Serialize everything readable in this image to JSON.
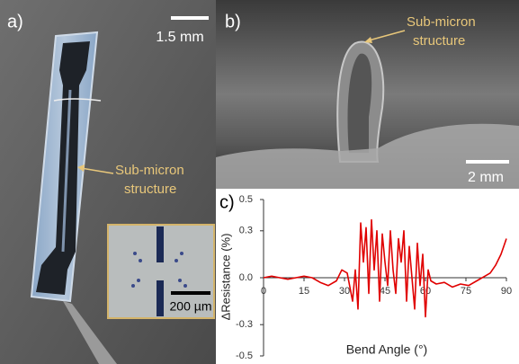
{
  "panels": {
    "a": {
      "label": "a)",
      "scale_bar": "1.5 mm",
      "annotation": [
        "Sub-micron",
        "structure"
      ],
      "inset_scale_bar": "200 µm"
    },
    "b": {
      "label": "b)",
      "annotation": [
        "Sub-micron",
        "structure"
      ],
      "scale_bar": "2 mm"
    },
    "c": {
      "label": "c)"
    }
  },
  "chart_data": {
    "type": "line",
    "xlabel": "Bend Angle (°)",
    "ylabel": "ΔResistance (%)",
    "color": "#e00000",
    "x": [
      0,
      3,
      6,
      9,
      12,
      15,
      18,
      21,
      24,
      27,
      29,
      31,
      33,
      34,
      35,
      36,
      37,
      38,
      39,
      40,
      41,
      42,
      43,
      44,
      45,
      46,
      47,
      48,
      49,
      50,
      51,
      52,
      53,
      54,
      55,
      56,
      57,
      58,
      59,
      60,
      61,
      62,
      64,
      67,
      70,
      73,
      76,
      79,
      82,
      84,
      86,
      88,
      89,
      90
    ],
    "values": [
      0,
      0.01,
      0,
      -0.01,
      0,
      0.01,
      0,
      -0.03,
      -0.05,
      -0.02,
      0.05,
      0.03,
      -0.15,
      0.05,
      -0.2,
      0.35,
      0.1,
      0.32,
      -0.1,
      0.37,
      0.05,
      0.3,
      -0.15,
      0.28,
      0.1,
      -0.05,
      0.3,
      0.05,
      -0.1,
      0.25,
      0.1,
      0.3,
      -0.15,
      0.2,
      0,
      -0.2,
      0.22,
      -0.05,
      0.15,
      -0.25,
      0.05,
      -0.02,
      -0.04,
      -0.03,
      -0.06,
      -0.04,
      -0.05,
      -0.02,
      0.01,
      0.03,
      0.08,
      0.15,
      0.2,
      0.25
    ],
    "xlim": [
      0,
      90
    ],
    "xticks": [
      0,
      15,
      30,
      45,
      60,
      75,
      90
    ],
    "ylim": [
      -0.5,
      0.5
    ],
    "yticks": [
      0.5,
      0.3,
      {
        "value": 0,
        "label": "0.0"
      },
      -0.3,
      -0.5
    ]
  }
}
